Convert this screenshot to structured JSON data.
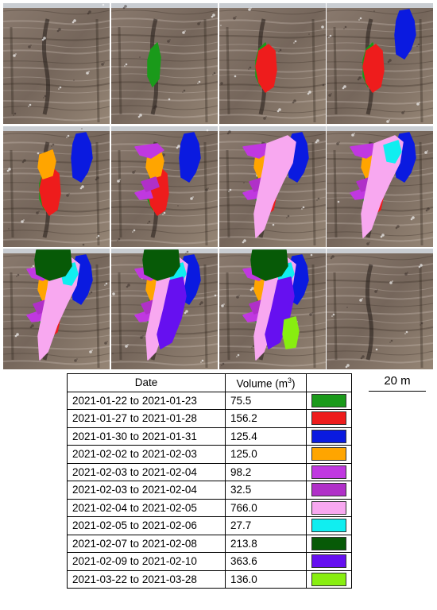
{
  "scale_bar": {
    "label": "20 m"
  },
  "table": {
    "headers": {
      "date": "Date",
      "volume": "Volume (m",
      "volume_sup": "3",
      "volume_close": ")"
    },
    "rows": [
      {
        "date": "2021-01-22 to 2021-01-23",
        "volume": "75.5",
        "color": "#1a9a1a"
      },
      {
        "date": "2021-01-27 to 2021-01-28",
        "volume": "156.2",
        "color": "#ee1c1c"
      },
      {
        "date": "2021-01-30 to 2021-01-31",
        "volume": "125.4",
        "color": "#0a1ae0"
      },
      {
        "date": "2021-02-02 to 2021-02-03",
        "volume": "125.0",
        "color": "#ffa500"
      },
      {
        "date": "2021-02-03 to 2021-02-04",
        "volume": "98.2",
        "color": "#c038e0"
      },
      {
        "date": "2021-02-03 to 2021-02-04",
        "volume": "32.5",
        "color": "#b030c8"
      },
      {
        "date": "2021-02-04 to 2021-02-05",
        "volume": "766.0",
        "color": "#f8a8f0"
      },
      {
        "date": "2021-02-05 to 2021-02-06",
        "volume": "27.7",
        "color": "#10eef0"
      },
      {
        "date": "2021-02-07 to 2021-02-08",
        "volume": "213.8",
        "color": "#075a07"
      },
      {
        "date": "2021-02-09 to 2021-02-10",
        "volume": "363.6",
        "color": "#6610f0"
      },
      {
        "date": "2021-03-22 to 2021-03-28",
        "volume": "136.0",
        "color": "#88ee10"
      }
    ]
  },
  "photo_panels": [
    {
      "overlays": []
    },
    {
      "overlays": [
        "green"
      ]
    },
    {
      "overlays": [
        "green",
        "red"
      ]
    },
    {
      "overlays": [
        "green",
        "red",
        "blue"
      ]
    },
    {
      "overlays": [
        "green",
        "red",
        "blue",
        "orange"
      ]
    },
    {
      "overlays": [
        "green",
        "red",
        "blue",
        "orange",
        "magenta",
        "purple"
      ]
    },
    {
      "overlays": [
        "green",
        "red",
        "blue",
        "orange",
        "magenta",
        "purple",
        "pink"
      ]
    },
    {
      "overlays": [
        "green",
        "red",
        "blue",
        "orange",
        "magenta",
        "purple",
        "pink",
        "cyan"
      ]
    },
    {
      "overlays": [
        "green",
        "red",
        "blue",
        "orange",
        "magenta",
        "purple",
        "pink",
        "cyan",
        "darkgreen"
      ]
    },
    {
      "overlays": [
        "green",
        "red",
        "blue",
        "orange",
        "magenta",
        "purple",
        "pink",
        "cyan",
        "darkgreen",
        "violet"
      ]
    },
    {
      "overlays": [
        "green",
        "red",
        "blue",
        "orange",
        "magenta",
        "purple",
        "pink",
        "cyan",
        "darkgreen",
        "violet",
        "lime"
      ]
    },
    {
      "overlays": []
    }
  ]
}
